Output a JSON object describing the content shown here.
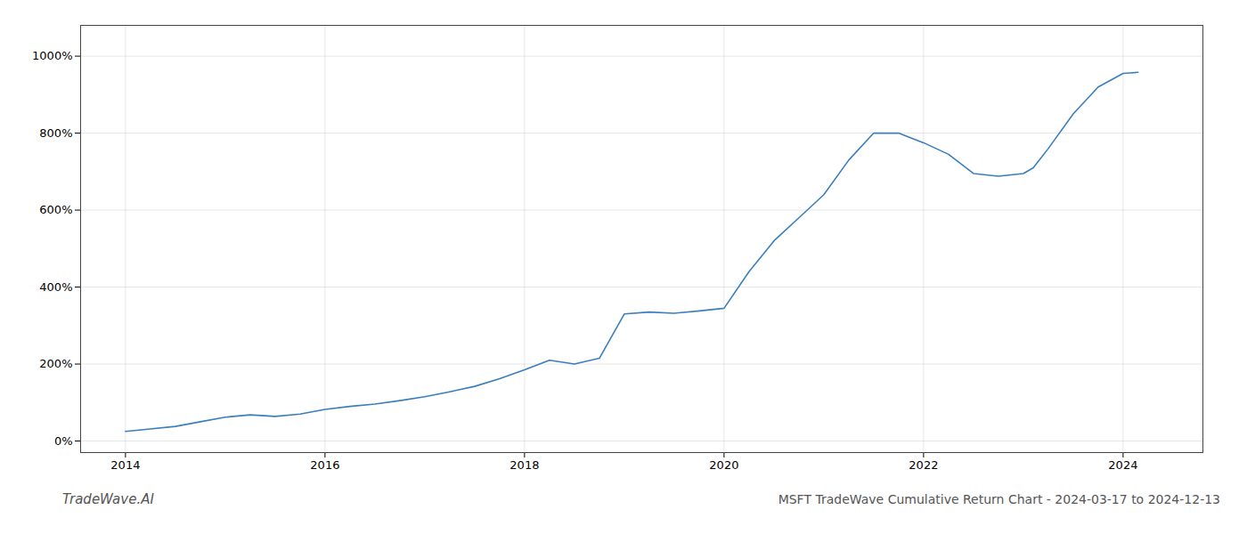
{
  "chart_data": {
    "type": "line",
    "title": "MSFT TradeWave Cumulative Return Chart - 2024-03-17 to 2024-12-13",
    "annotations": [
      "TradeWave.AI"
    ],
    "x": [
      2014.0,
      2014.2,
      2014.5,
      2014.75,
      2015.0,
      2015.25,
      2015.5,
      2015.75,
      2016.0,
      2016.25,
      2016.5,
      2016.75,
      2017.0,
      2017.25,
      2017.5,
      2017.75,
      2018.0,
      2018.25,
      2018.5,
      2018.75,
      2019.0,
      2019.25,
      2019.5,
      2019.75,
      2020.0,
      2020.25,
      2020.5,
      2020.75,
      2021.0,
      2021.25,
      2021.5,
      2021.75,
      2022.0,
      2022.25,
      2022.5,
      2022.75,
      2023.0,
      2023.1,
      2023.25,
      2023.5,
      2023.75,
      2024.0,
      2024.15
    ],
    "values": [
      25,
      30,
      38,
      50,
      62,
      68,
      64,
      70,
      82,
      90,
      96,
      105,
      115,
      128,
      142,
      162,
      185,
      210,
      200,
      215,
      330,
      335,
      332,
      338,
      345,
      440,
      520,
      580,
      640,
      730,
      800,
      800,
      775,
      745,
      695,
      688,
      695,
      710,
      760,
      850,
      920,
      955,
      958
    ],
    "color": "#3a7ebf",
    "xlim": [
      2013.55,
      2024.8
    ],
    "xticks": [
      2014,
      2016,
      2018,
      2020,
      2022,
      2024
    ],
    "ylim": [
      -30,
      1080
    ],
    "yticks": [
      {
        "value": 0,
        "label": "0%"
      },
      {
        "value": 200,
        "label": "200%"
      },
      {
        "value": 400,
        "label": "400%"
      },
      {
        "value": 600,
        "label": "600%"
      },
      {
        "value": 800,
        "label": "800%"
      },
      {
        "value": 1000,
        "label": "1000%"
      }
    ],
    "grid": true
  }
}
